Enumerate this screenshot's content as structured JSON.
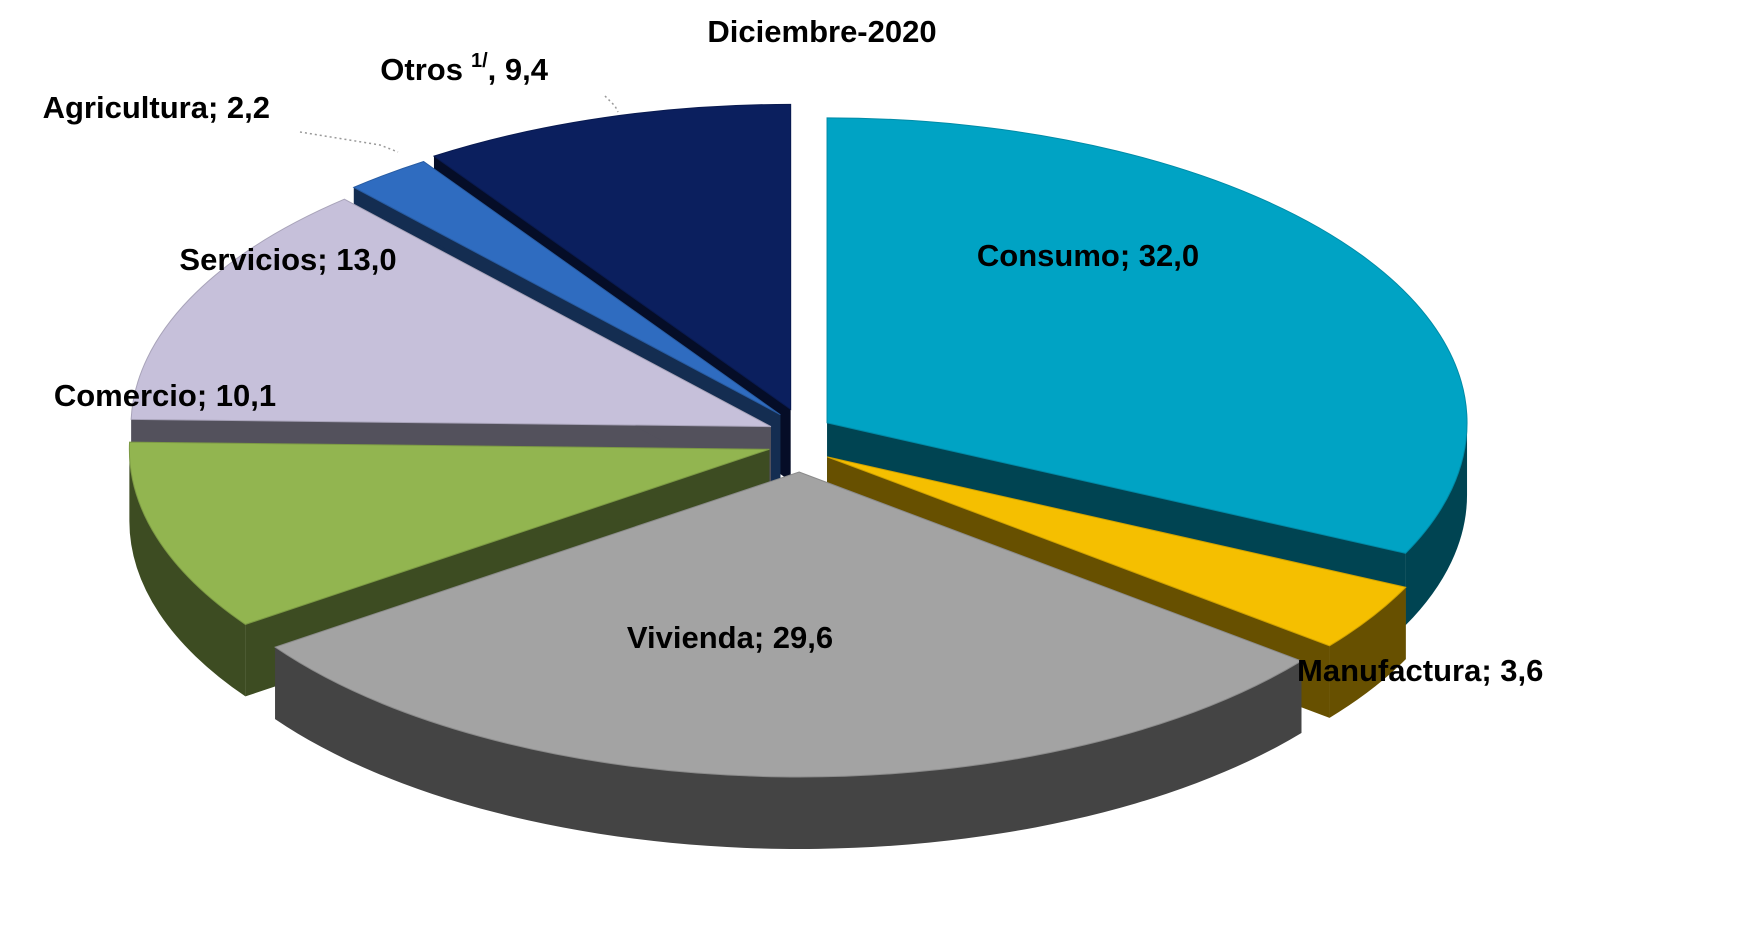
{
  "chart_data": {
    "type": "pie",
    "title": "Diciembre-2020",
    "categories": [
      "Consumo",
      "Manufactura",
      "Vivienda",
      "Comercio",
      "Servicios",
      "Agricultura",
      "Otros"
    ],
    "category_superscripts": [
      null,
      null,
      null,
      null,
      null,
      null,
      "1/"
    ],
    "values": [
      32.0,
      3.6,
      29.6,
      10.1,
      13.0,
      2.2,
      9.4
    ],
    "value_labels": [
      "; 32,0",
      "; 3,6",
      "; 29,6",
      "; 10,1",
      "; 13,0",
      "; 2,2",
      ", 9,4"
    ],
    "colors": [
      "#00a3c4",
      "#f5bf00",
      "#a3a3a3",
      "#92b550",
      "#c6c0da",
      "#2f6cc0",
      "#0b1f5e"
    ]
  }
}
